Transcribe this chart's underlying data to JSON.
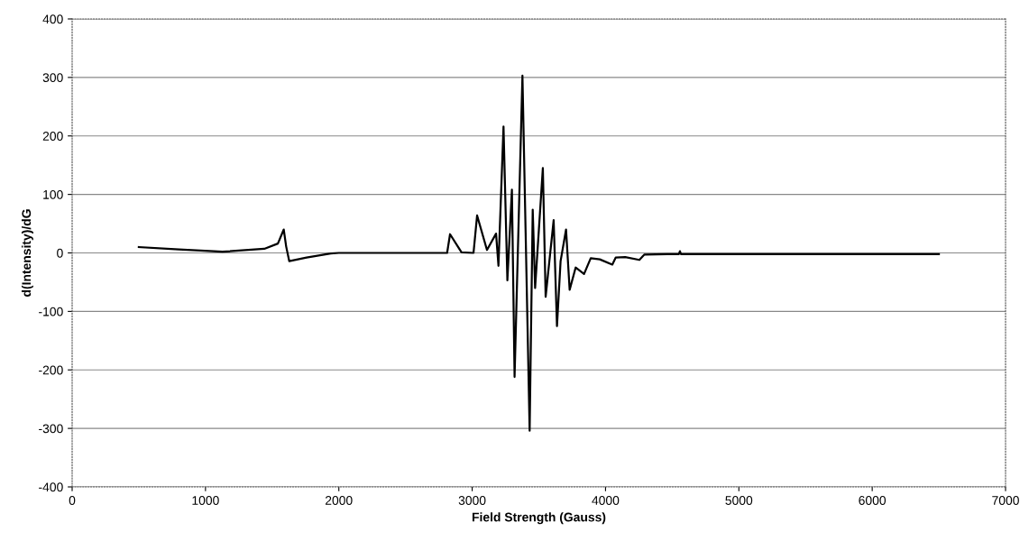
{
  "chart_data": {
    "type": "line",
    "xlabel": "Field Strength (Gauss)",
    "ylabel": "d(Intensity)/dG",
    "xlim": [
      0,
      7000
    ],
    "xticks": [
      0,
      1000,
      2000,
      3000,
      4000,
      5000,
      6000,
      7000
    ],
    "ylim": [
      -400,
      400
    ],
    "yticks": [
      -400,
      -300,
      -200,
      -100,
      0,
      100,
      200,
      300,
      400
    ],
    "grid": "y",
    "marker": "none",
    "line_style": "solid",
    "series": [
      {
        "color": "#000000",
        "x": [
          500,
          800,
          1127,
          1441,
          1543,
          1587,
          1605,
          1628,
          1758,
          1939,
          2000,
          2500,
          2812,
          2834,
          2920,
          3010,
          3037,
          3111,
          3179,
          3197,
          3235,
          3264,
          3298,
          3318,
          3377,
          3431,
          3454,
          3472,
          3530,
          3551,
          3611,
          3636,
          3663,
          3704,
          3731,
          3776,
          3839,
          3889,
          3957,
          4051,
          4076,
          4148,
          4254,
          4290,
          4464,
          4550,
          4558,
          4566,
          5000,
          5690,
          6000,
          6500
        ],
        "values": [
          10,
          6,
          2,
          7,
          16,
          40,
          11,
          -14,
          -8,
          -1,
          0,
          0,
          0,
          32,
          1,
          0,
          64,
          5,
          33,
          -22,
          216,
          -47,
          108,
          -212,
          303,
          -304,
          74,
          -60,
          145,
          -75,
          56,
          -125,
          -14,
          40,
          -63,
          -25,
          -36,
          -9,
          -11,
          -20,
          -8,
          -7,
          -12,
          -3,
          -2,
          -2,
          3,
          -2,
          -2,
          -2,
          -2,
          -2
        ]
      }
    ]
  }
}
